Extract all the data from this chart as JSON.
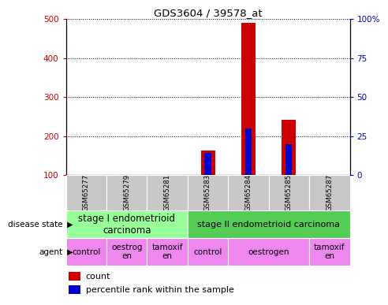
{
  "title": "GDS3604 / 39578_at",
  "samples": [
    "GSM65277",
    "GSM65279",
    "GSM65281",
    "GSM65283",
    "GSM65284",
    "GSM65285",
    "GSM65287"
  ],
  "count_values": [
    null,
    null,
    null,
    163,
    490,
    242,
    null
  ],
  "percentile_values": [
    null,
    null,
    null,
    157,
    220,
    178,
    null
  ],
  "ylim_left": [
    100,
    500
  ],
  "ylim_right": [
    0,
    100
  ],
  "yticks_left": [
    100,
    200,
    300,
    400,
    500
  ],
  "yticks_right": [
    0,
    25,
    50,
    75,
    100
  ],
  "ytick_labels_right": [
    "0",
    "25",
    "50",
    "75",
    "100%"
  ],
  "bar_color_count": "#cc0000",
  "bar_color_pct": "#0000cc",
  "grid_color": "#000000",
  "disease_state_groups": [
    {
      "label": "stage I endometrioid\ncarcinoma",
      "start": 0,
      "end": 3,
      "color": "#99ff99"
    },
    {
      "label": "stage II endometrioid carcinoma",
      "start": 3,
      "end": 7,
      "color": "#55cc55"
    }
  ],
  "agent_groups": [
    {
      "label": "control",
      "start": 0,
      "end": 1,
      "color": "#ee88ee"
    },
    {
      "label": "oestrog\nen",
      "start": 1,
      "end": 2,
      "color": "#ee88ee"
    },
    {
      "label": "tamoxif\nen",
      "start": 2,
      "end": 3,
      "color": "#ee88ee"
    },
    {
      "label": "control",
      "start": 3,
      "end": 4,
      "color": "#ee88ee"
    },
    {
      "label": "oestrogen",
      "start": 4,
      "end": 6,
      "color": "#ee88ee"
    },
    {
      "label": "tamoxif\nen",
      "start": 6,
      "end": 7,
      "color": "#ee88ee"
    }
  ],
  "left_label_color": "#cc0000",
  "right_label_color": "#0000cc",
  "sample_bg": "#c8c8c8",
  "legend_count_label": "count",
  "legend_pct_label": "percentile rank within the sample"
}
